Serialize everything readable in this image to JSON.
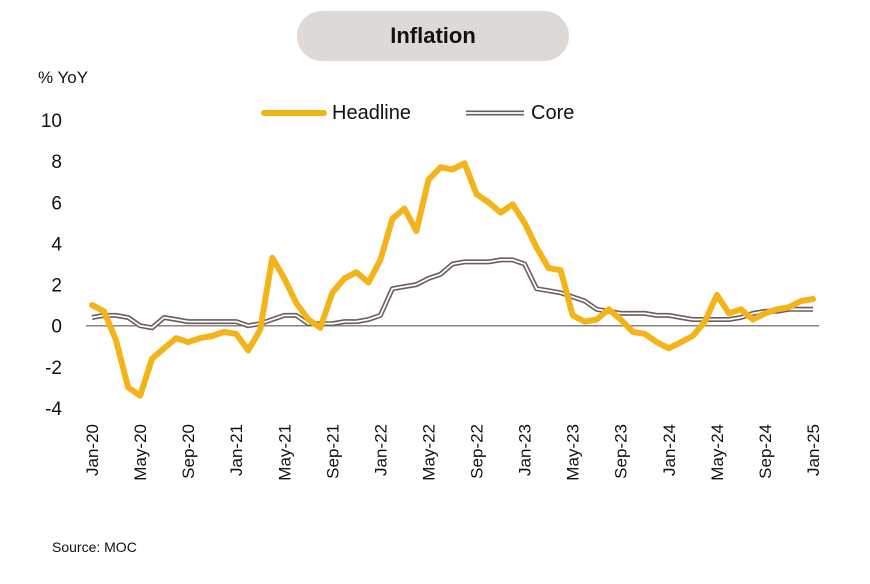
{
  "chart_data": {
    "type": "line",
    "title": "Inflation",
    "ylabel": "% YoY",
    "source": "Source: MOC",
    "ylim": [
      -4,
      10
    ],
    "yticks": [
      "10",
      "8",
      "6",
      "4",
      "2",
      "0",
      "-2",
      "-4"
    ],
    "xtick_labels": [
      "Jan-20",
      "May-20",
      "Sep-20",
      "Jan-21",
      "May-21",
      "Sep-21",
      "Jan-22",
      "May-22",
      "Sep-22",
      "Jan-23",
      "May-23",
      "Sep-23",
      "Jan-24",
      "May-24",
      "Sep-24",
      "Jan-25"
    ],
    "x_start": "Jan-20",
    "x_end": "Jan-25",
    "legend_position": "top-center",
    "grid": false,
    "series": [
      {
        "name": "Headline",
        "color": "#f2b418",
        "values": [
          1.0,
          0.7,
          -0.7,
          -3.0,
          -3.4,
          -1.6,
          -1.1,
          -0.6,
          -0.8,
          -0.6,
          -0.5,
          -0.3,
          -0.4,
          -1.2,
          -0.2,
          3.3,
          2.3,
          1.1,
          0.3,
          -0.1,
          1.6,
          2.3,
          2.6,
          2.1,
          3.2,
          5.2,
          5.7,
          4.6,
          7.1,
          7.7,
          7.6,
          7.9,
          6.4,
          6.0,
          5.5,
          5.9,
          5.0,
          3.8,
          2.8,
          2.7,
          0.5,
          0.2,
          0.3,
          0.8,
          0.3,
          -0.3,
          -0.4,
          -0.8,
          -1.1,
          -0.8,
          -0.5,
          0.2,
          1.5,
          0.6,
          0.8,
          0.3,
          0.6,
          0.8,
          0.9,
          1.2,
          1.3
        ]
      },
      {
        "name": "Core",
        "color": "#6b5e5b",
        "values": [
          0.4,
          0.5,
          0.5,
          0.4,
          0.0,
          -0.1,
          0.4,
          0.3,
          0.2,
          0.2,
          0.2,
          0.2,
          0.2,
          0.0,
          0.1,
          0.3,
          0.5,
          0.5,
          0.1,
          0.1,
          0.1,
          0.2,
          0.2,
          0.3,
          0.5,
          1.8,
          1.9,
          2.0,
          2.3,
          2.5,
          3.0,
          3.1,
          3.1,
          3.1,
          3.2,
          3.2,
          3.0,
          1.8,
          1.7,
          1.6,
          1.4,
          1.2,
          0.8,
          0.7,
          0.6,
          0.6,
          0.6,
          0.5,
          0.5,
          0.4,
          0.3,
          0.3,
          0.3,
          0.3,
          0.4,
          0.6,
          0.7,
          0.7,
          0.8,
          0.8,
          0.8
        ]
      }
    ]
  }
}
